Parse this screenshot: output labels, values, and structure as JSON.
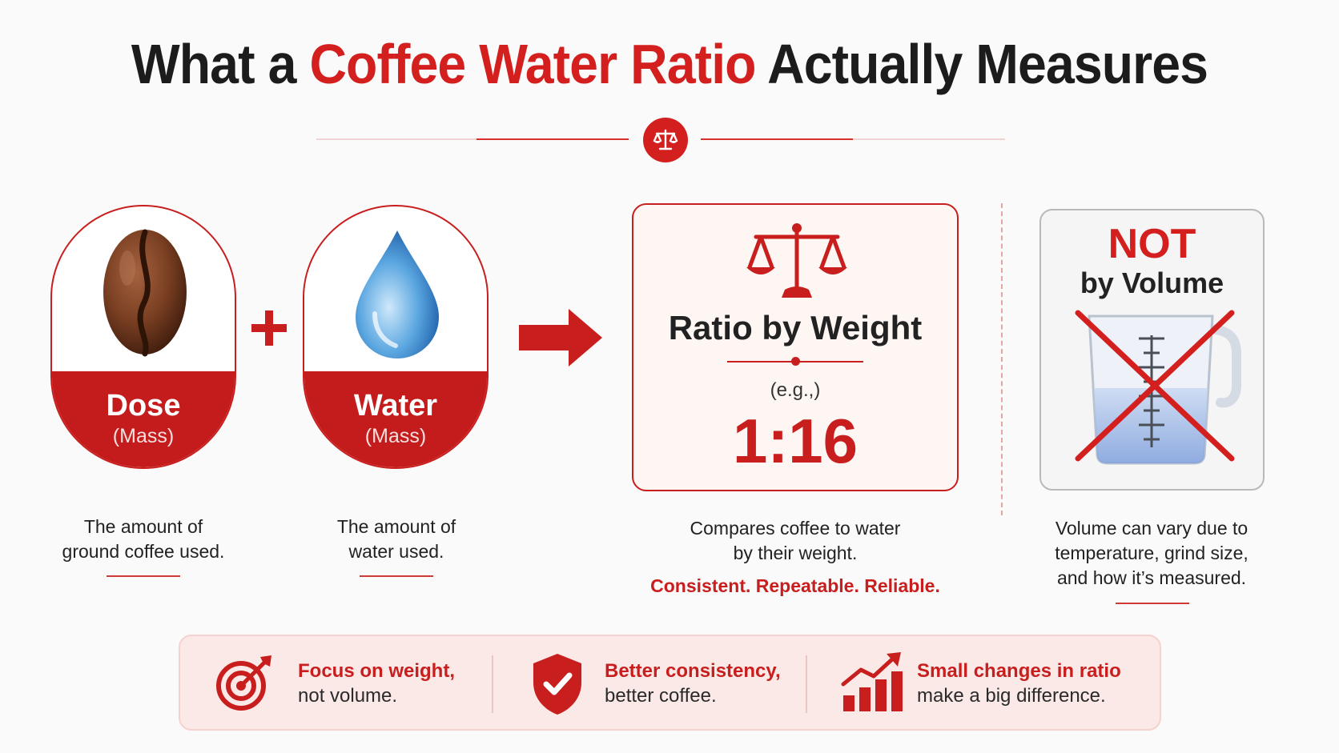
{
  "title": {
    "before": "What a",
    "accent": "Coffee Water Ratio",
    "after": "Actually Measures"
  },
  "dose": {
    "label": "Dose",
    "sublabel": "(Mass)",
    "description_line1": "The amount of",
    "description_line2": "ground coffee used."
  },
  "plus_symbol": "+",
  "water": {
    "label": "Water",
    "sublabel": "(Mass)",
    "description_line1": "The amount of",
    "description_line2": "water used."
  },
  "ratio": {
    "title": "Ratio by Weight",
    "example_prefix": "(e.g.,)",
    "value": "1:16",
    "description_line1": "Compares coffee to water",
    "description_line2": "by their weight.",
    "tagline": "Consistent. Repeatable. Reliable."
  },
  "volume": {
    "not_label": "NOT",
    "by_label": "by Volume",
    "description_line1": "Volume can vary due to",
    "description_line2": "temperature, grind size,",
    "description_line3": "and how it’s measured."
  },
  "tips": [
    {
      "icon": "target-icon",
      "strong": "Focus on weight,",
      "plain": "not volume."
    },
    {
      "icon": "shield-check-icon",
      "strong": "Better consistency,",
      "plain": "better coffee."
    },
    {
      "icon": "growth-chart-icon",
      "strong": "Small changes in ratio",
      "plain": "make a big difference."
    }
  ],
  "colors": {
    "accent_red": "#d41f1f",
    "dark_red": "#c41c1c",
    "text_dark": "#1c1c1c",
    "card_tint": "#fdf6f3",
    "bottom_bar_bg": "#fbe9e7"
  }
}
